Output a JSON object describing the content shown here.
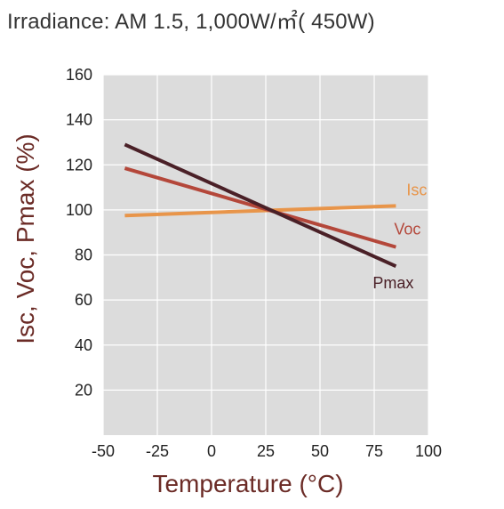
{
  "chart_data": {
    "type": "line",
    "title": "Irradiance: AM 1.5, 1,000W/㎡( 450W)",
    "xlabel": "Temperature (°C)",
    "ylabel": "Isc, Voc, Pmax (%)",
    "xlim": [
      -50,
      100
    ],
    "ylim": [
      0,
      160
    ],
    "xticks": [
      -50,
      -25,
      0,
      25,
      50,
      75,
      100
    ],
    "yticks": [
      20,
      40,
      60,
      80,
      100,
      120,
      140,
      160
    ],
    "grid": true,
    "legend": "inline-labels",
    "series": [
      {
        "name": "Isc",
        "color": "#e8954a",
        "x": [
          -40,
          85
        ],
        "y": [
          97.5,
          101.8
        ]
      },
      {
        "name": "Voc",
        "color": "#b4473a",
        "x": [
          -40,
          85
        ],
        "y": [
          118.5,
          83.5
        ]
      },
      {
        "name": "Pmax",
        "color": "#4a2027",
        "x": [
          -40,
          85
        ],
        "y": [
          129,
          75
        ]
      }
    ],
    "label_colors": {
      "Isc": "#e8954a",
      "Voc": "#b4473a",
      "Pmax": "#4a2027"
    }
  }
}
